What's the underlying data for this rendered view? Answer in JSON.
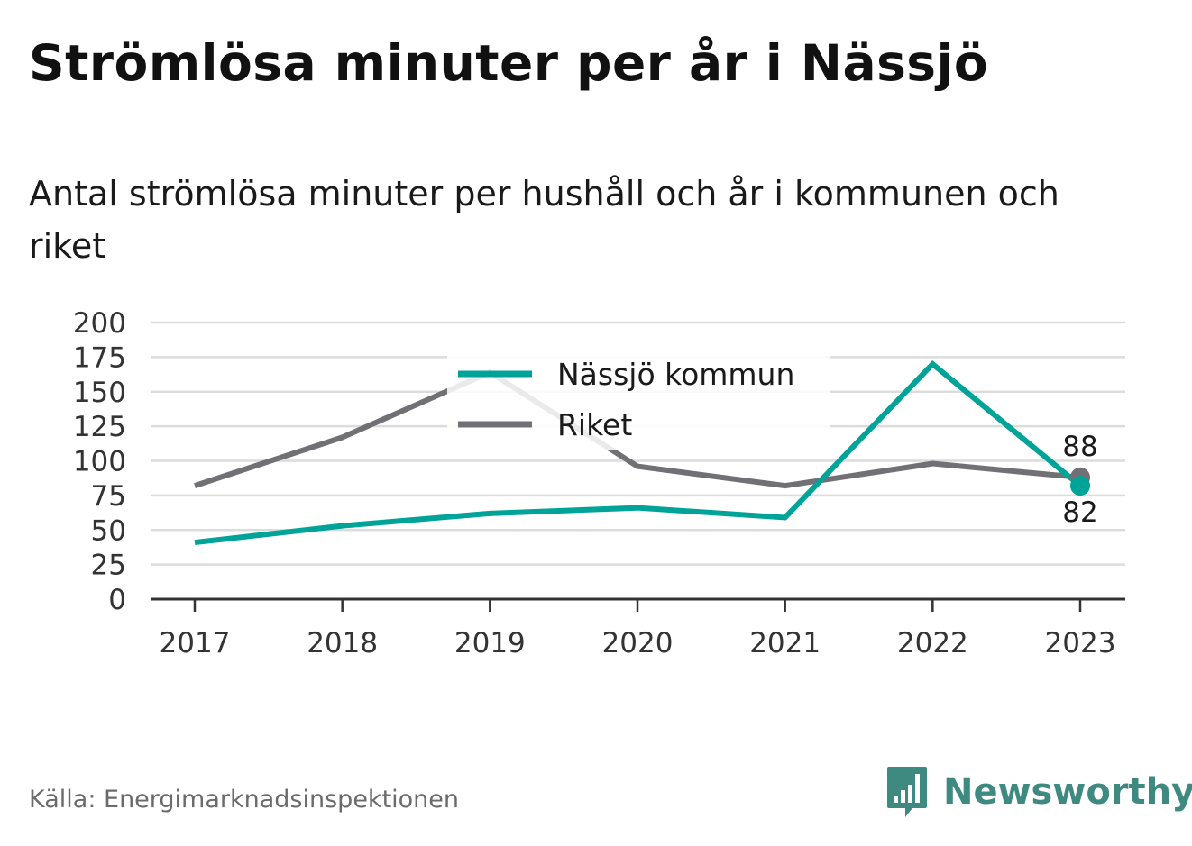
{
  "title": "Strömlösa minuter per år i Nässjö",
  "subtitle": "Antal strömlösa minuter per hushåll och år i kommunen och riket",
  "source": "Källa: Energimarknadsinspektionen",
  "brand": {
    "name": "Newsworthy",
    "logo_icon": "bar-chart-speech-bubble-icon",
    "color": "#3f8a80"
  },
  "chart_data": {
    "type": "line",
    "categories": [
      "2017",
      "2018",
      "2019",
      "2020",
      "2021",
      "2022",
      "2023"
    ],
    "series": [
      {
        "name": "Nässjö kommun",
        "color": "#00a398",
        "values": [
          41,
          53,
          62,
          66,
          59,
          170,
          82
        ]
      },
      {
        "name": "Riket",
        "color": "#707075",
        "values": [
          82,
          117,
          164,
          96,
          82,
          98,
          88
        ]
      }
    ],
    "yticks": [
      0,
      25,
      50,
      75,
      100,
      125,
      150,
      175,
      200
    ],
    "ylim": [
      0,
      200
    ],
    "grid": true,
    "legend_position": "top-center",
    "end_labels": [
      {
        "series": "Riket",
        "label": "88"
      },
      {
        "series": "Nässjö kommun",
        "label": "82"
      }
    ]
  }
}
